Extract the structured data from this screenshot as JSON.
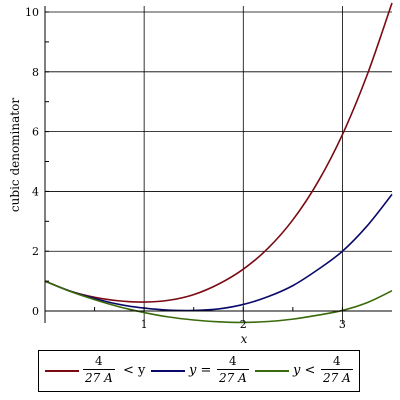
{
  "chart_data": {
    "type": "line",
    "xlabel": "x",
    "ylabel": "cubic denominator",
    "xlim": [
      0,
      3.5
    ],
    "ylim": [
      -0.4,
      10.2
    ],
    "x_ticks": [
      1,
      2,
      3
    ],
    "x_tick_labels": [
      "1",
      "2",
      "3"
    ],
    "y_ticks": [
      0,
      2,
      4,
      6,
      8,
      10
    ],
    "y_tick_labels": [
      "0",
      "2",
      "4",
      "6",
      "8",
      "10"
    ],
    "grid": true,
    "legend_position": "bottom",
    "series": [
      {
        "color": "#7a0a14",
        "x": [
          0,
          0.25,
          0.5,
          0.75,
          1.0,
          1.25,
          1.5,
          1.75,
          2.0,
          2.25,
          2.5,
          2.75,
          3.0,
          3.25,
          3.5
        ],
        "y": [
          1.0,
          0.67,
          0.46,
          0.34,
          0.3,
          0.36,
          0.55,
          0.9,
          1.4,
          2.1,
          3.05,
          4.3,
          5.9,
          7.9,
          10.3
        ]
      },
      {
        "color": "#0a0a6a",
        "x": [
          0,
          0.25,
          0.5,
          0.75,
          1.0,
          1.25,
          1.5,
          1.75,
          2.0,
          2.25,
          2.5,
          2.75,
          3.0,
          3.25,
          3.5
        ],
        "y": [
          1.0,
          0.67,
          0.42,
          0.22,
          0.1,
          0.03,
          0.02,
          0.07,
          0.22,
          0.48,
          0.85,
          1.38,
          2.0,
          2.85,
          3.9
        ]
      },
      {
        "color": "#3a6a0a",
        "x": [
          0,
          0.25,
          0.5,
          0.75,
          1.0,
          1.25,
          1.5,
          1.75,
          2.0,
          2.25,
          2.5,
          2.75,
          3.0,
          3.25,
          3.5
        ],
        "y": [
          1.0,
          0.66,
          0.38,
          0.14,
          -0.05,
          -0.2,
          -0.3,
          -0.36,
          -0.38,
          -0.35,
          -0.27,
          -0.14,
          0.02,
          0.28,
          0.68
        ]
      }
    ],
    "legend": [
      {
        "num": "4",
        "den": "27 A",
        "op": "< y",
        "lhs": ""
      },
      {
        "num": "4",
        "den": "27 A",
        "op": "",
        "lhs": "y ="
      },
      {
        "num": "4",
        "den": "27 A",
        "op": "",
        "lhs": "y <"
      }
    ]
  }
}
